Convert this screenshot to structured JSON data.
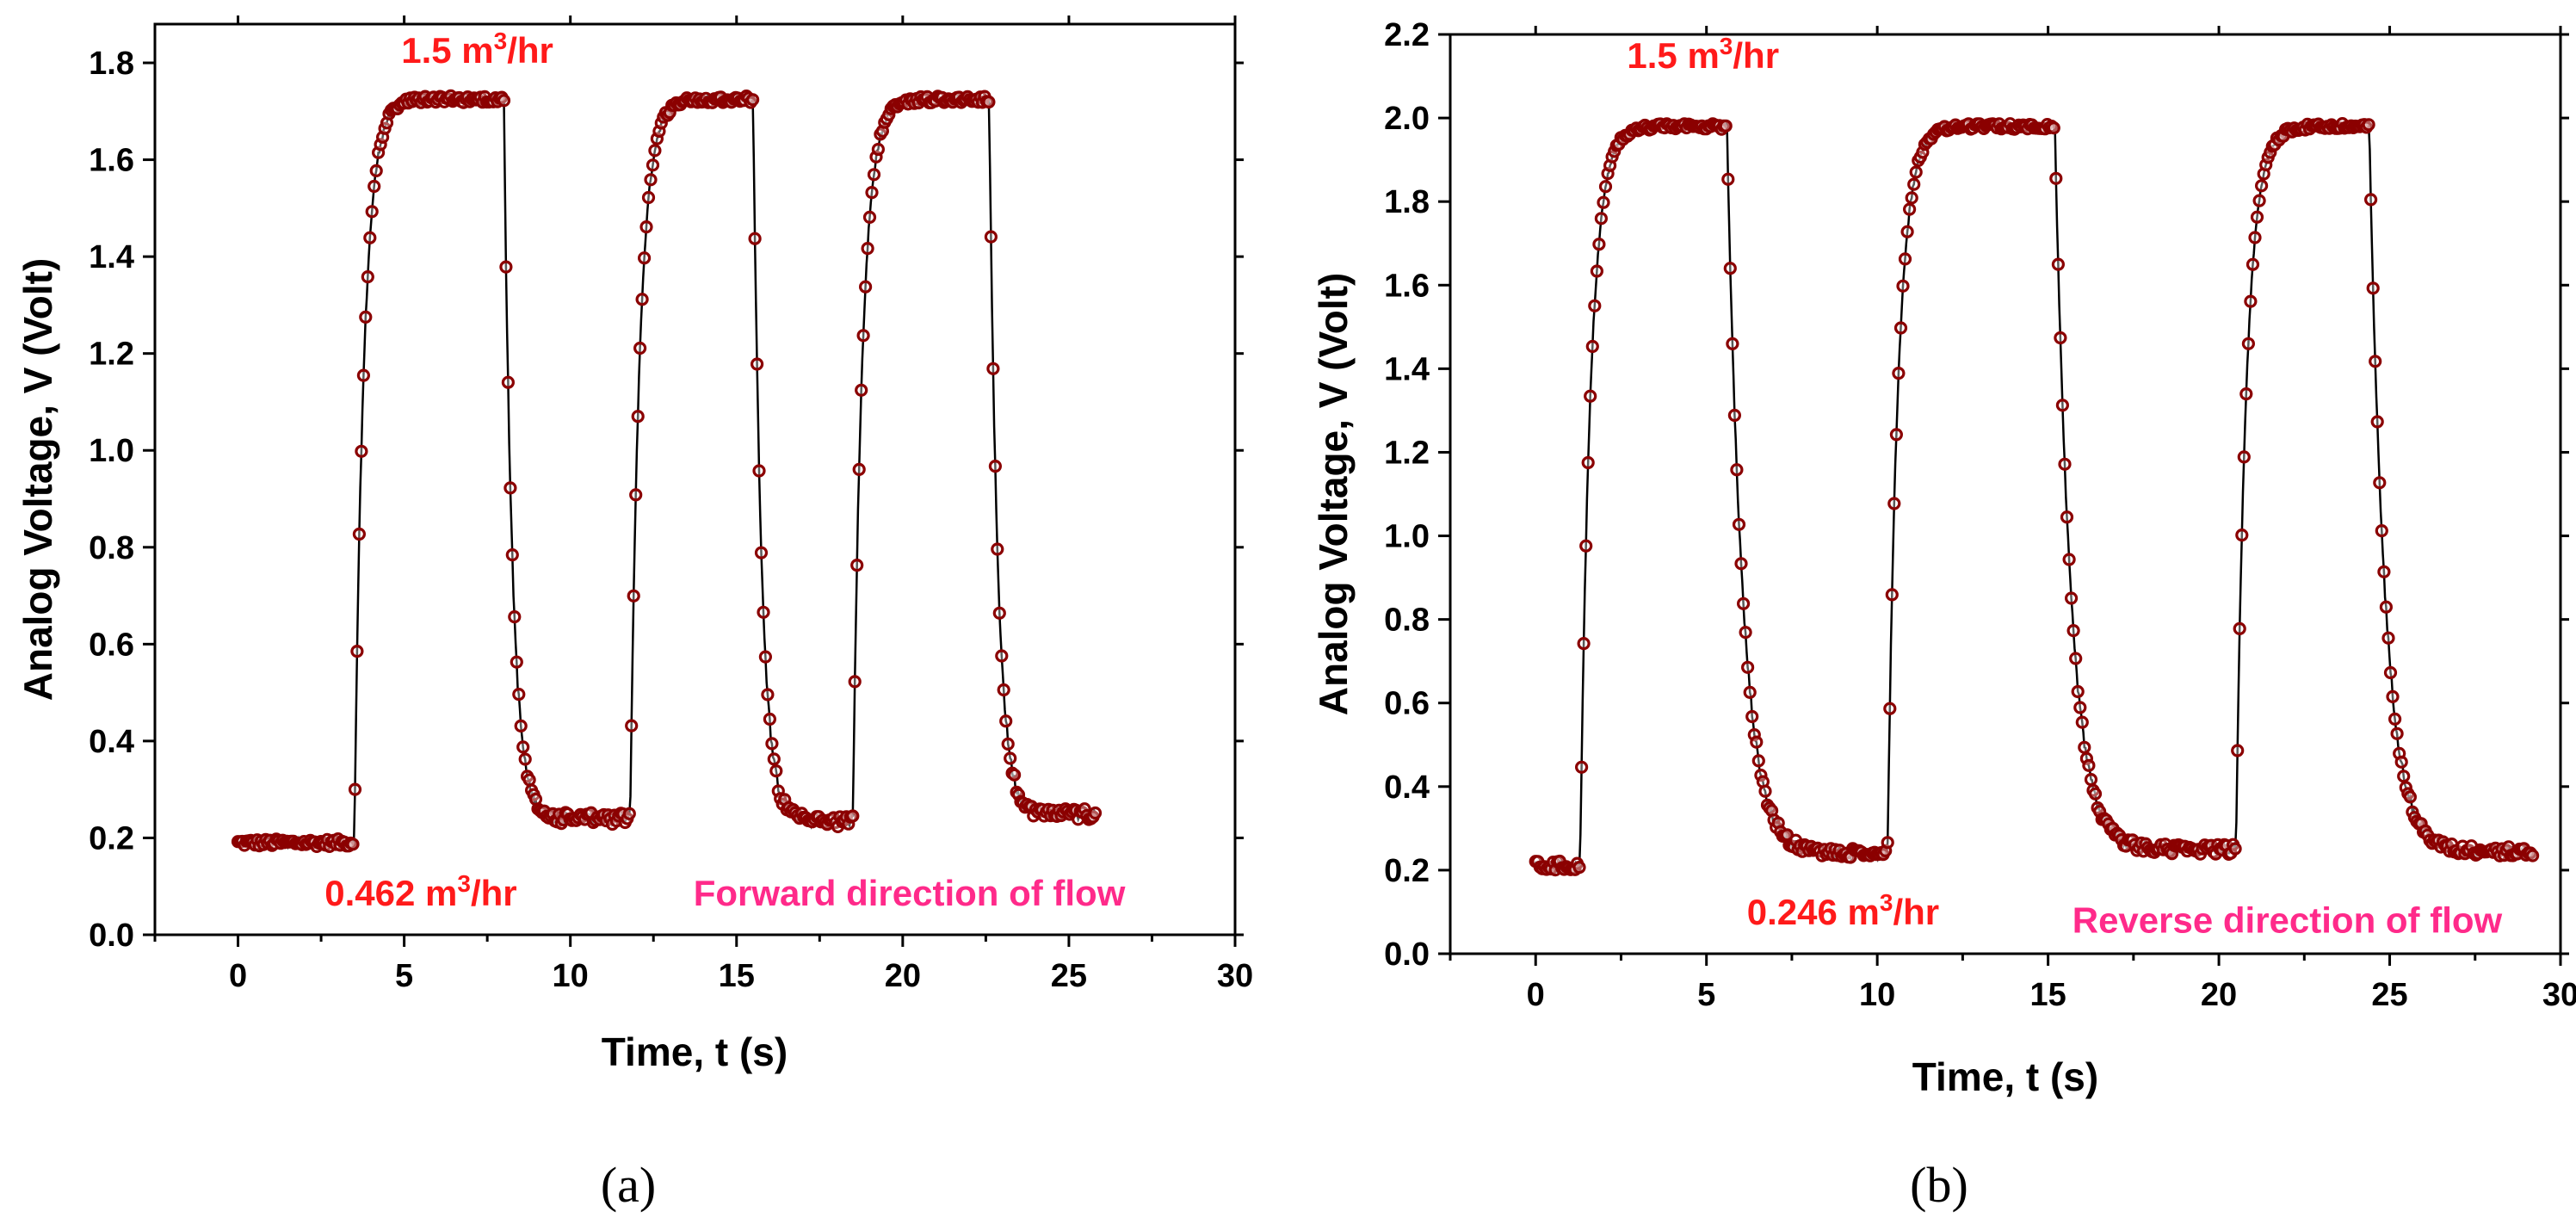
{
  "colors": {
    "marker": "#8b0000",
    "line": "#000000",
    "annotation_red": "#ff1a1a",
    "annotation_pink": "#ff2a8a"
  },
  "chart_data": [
    {
      "type": "line",
      "panel": "a",
      "caption": "(a)",
      "xlabel": "Time, t (s)",
      "ylabel": "Analog Voltage, V (Volt)",
      "xlim": [
        -2.5,
        30
      ],
      "ylim": [
        0.0,
        1.88
      ],
      "xticks": [
        0,
        5,
        10,
        15,
        20,
        25,
        30
      ],
      "yticks": [
        0.0,
        0.2,
        0.4,
        0.6,
        0.8,
        1.0,
        1.2,
        1.4,
        1.6,
        1.8
      ],
      "xtick_labels": [
        "0",
        "5",
        "10",
        "15",
        "20",
        "25",
        "30"
      ],
      "ytick_labels": [
        "0.0",
        "0.2",
        "0.4",
        "0.6",
        "0.8",
        "1.0",
        "1.2",
        "1.4",
        "1.6",
        "1.8"
      ],
      "annotations": [
        {
          "id": "high",
          "text": "1.5 m³/hr",
          "at": [
            7.2,
            1.8
          ]
        },
        {
          "id": "low",
          "text": "0.462 m³/hr",
          "at": [
            5.5,
            0.06
          ]
        },
        {
          "id": "direction",
          "text": "Forward direction of flow",
          "at": [
            20.2,
            0.06
          ]
        }
      ],
      "series": [
        {
          "name": "Analog voltage",
          "x_end": 25.8,
          "baseline": 0.19,
          "base_noise": 0.008,
          "phases": [
            {
              "start": 3.5,
              "end": 8.0,
              "level": 1.725,
              "noise": 0.007,
              "tau_up": 0.28,
              "tau_down": 0.25
            },
            {
              "start": 11.8,
              "end": 15.5,
              "level": 1.725,
              "noise": 0.007,
              "tau_up": 0.28,
              "tau_down": 0.25
            },
            {
              "start": 18.5,
              "end": 22.6,
              "level": 1.725,
              "noise": 0.007,
              "tau_up": 0.28,
              "tau_down": 0.25
            }
          ],
          "low_levels": [
            0.24,
            0.235,
            0.25
          ],
          "low_noise": 0.012
        }
      ]
    },
    {
      "type": "line",
      "panel": "b",
      "caption": "(b)",
      "xlabel": "Time, t (s)",
      "ylabel": "Analog Voltage, V (Volt)",
      "xlim": [
        -2.5,
        30
      ],
      "ylim": [
        0.0,
        2.2
      ],
      "xticks": [
        0,
        5,
        10,
        15,
        20,
        25,
        30
      ],
      "yticks": [
        0.0,
        0.2,
        0.4,
        0.6,
        0.8,
        1.0,
        1.2,
        1.4,
        1.6,
        1.8,
        2.0,
        2.2
      ],
      "xtick_labels": [
        "0",
        "5",
        "10",
        "15",
        "20",
        "25",
        "30"
      ],
      "ytick_labels": [
        "0.0",
        "0.2",
        "0.4",
        "0.6",
        "0.8",
        "1.0",
        "1.2",
        "1.4",
        "1.6",
        "1.8",
        "2.0",
        "2.2"
      ],
      "annotations": [
        {
          "id": "high",
          "text": "1.5 m³/hr",
          "at": [
            4.9,
            2.12
          ]
        },
        {
          "id": "low",
          "text": "0.246 m³/hr",
          "at": [
            9.0,
            0.07
          ]
        },
        {
          "id": "direction",
          "text": "Reverse direction of flow",
          "at": [
            22.0,
            0.05
          ]
        }
      ],
      "series": [
        {
          "name": "Analog voltage",
          "x_end": 29.2,
          "baseline": 0.21,
          "base_noise": 0.012,
          "phases": [
            {
              "start": 1.3,
              "end": 5.6,
              "level": 1.98,
              "noise": 0.007,
              "tau_up": 0.3,
              "tau_down": 0.45
            },
            {
              "start": 10.3,
              "end": 15.2,
              "level": 1.98,
              "noise": 0.007,
              "tau_up": 0.3,
              "tau_down": 0.45
            },
            {
              "start": 20.5,
              "end": 24.4,
              "level": 1.98,
              "noise": 0.007,
              "tau_up": 0.3,
              "tau_down": 0.45
            }
          ],
          "low_levels": [
            0.24,
            0.25,
            0.245
          ],
          "low_noise": 0.012
        }
      ]
    }
  ]
}
